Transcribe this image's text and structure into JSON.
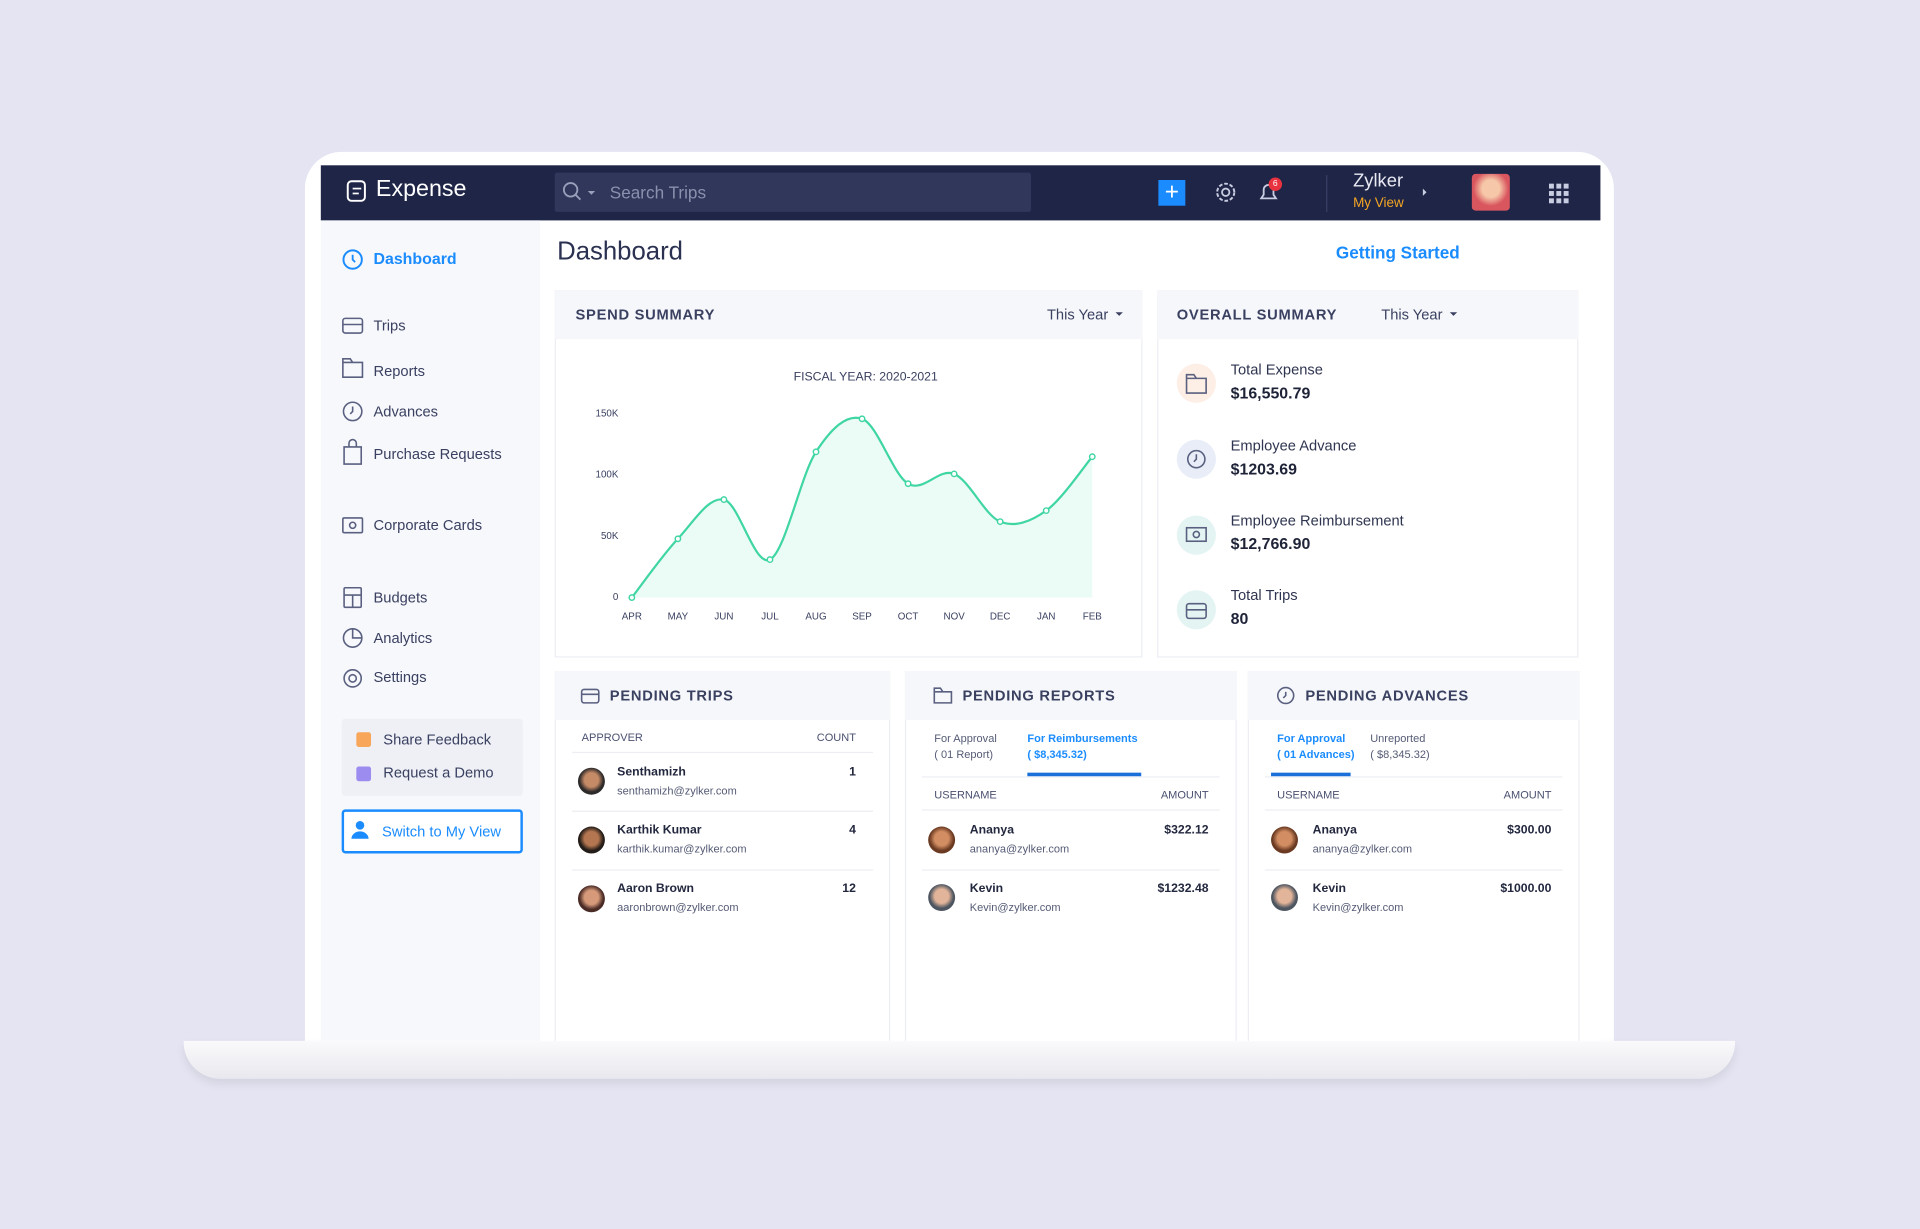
{
  "app": {
    "name": "Expense",
    "search_placeholder": "Search Trips",
    "notification_count": "6",
    "org": "Zylker",
    "view": "My View"
  },
  "sidebar": {
    "items": [
      "Dashboard",
      "Trips",
      "Reports",
      "Advances",
      "Purchase Requests",
      "Corporate Cards",
      "Budgets",
      "Analytics",
      "Settings"
    ],
    "links": [
      "Share Feedback",
      "Request a Demo"
    ],
    "button": "Switch to My View"
  },
  "page": {
    "title": "Dashboard",
    "getting_started": "Getting Started"
  },
  "spend_summary": {
    "title": "SPEND SUMMARY",
    "period": "This Year"
  },
  "chart_data": {
    "type": "line",
    "title": "FISCAL YEAR: 2020-2021",
    "categories": [
      "APR",
      "MAY",
      "JUN",
      "JUL",
      "AUG",
      "SEP",
      "OCT",
      "NOV",
      "DEC",
      "JAN",
      "FEB"
    ],
    "values": [
      0,
      48000,
      80000,
      31000,
      119000,
      146000,
      93000,
      101000,
      62000,
      71000,
      115000
    ],
    "color": "#3fd6a2",
    "ylim": [
      0,
      150000
    ],
    "yticks": [
      0,
      {
        "value": 50000,
        "label": "50K"
      },
      {
        "value": 100000,
        "label": "100K"
      },
      {
        "value": 150000,
        "label": "150K"
      }
    ],
    "grid": false
  },
  "overall_summary": {
    "title": "OVERALL SUMMARY",
    "period": "This Year",
    "items": [
      {
        "label": "Total Expense",
        "value": "$16,550.79"
      },
      {
        "label": "Employee Advance",
        "value": "$1203.69"
      },
      {
        "label": "Employee Reimbursement",
        "value": "$12,766.90"
      },
      {
        "label": "Total Trips",
        "value": "80"
      }
    ]
  },
  "pending_trips": {
    "title": "PENDING TRIPS",
    "columns": [
      "APPROVER",
      "COUNT"
    ],
    "rows": [
      {
        "name": "Senthamizh",
        "email": "senthamizh@zylker.com",
        "count": 1
      },
      {
        "name": "Karthik Kumar",
        "email": "karthik.kumar@zylker.com",
        "count": 4
      },
      {
        "name": "Aaron Brown",
        "email": "aaronbrown@zylker.com",
        "count": 12
      }
    ]
  },
  "pending_reports": {
    "title": "PENDING REPORTS",
    "tabs": [
      {
        "label": "For Approval",
        "sub": "( 01 Report)"
      },
      {
        "label": "For Reimbursements",
        "sub": "( $8,345.32)"
      }
    ],
    "columns": [
      "USERNAME",
      "AMOUNT"
    ],
    "rows": [
      {
        "name": "Ananya",
        "email": "ananya@zylker.com",
        "amount": "$322.12"
      },
      {
        "name": "Kevin",
        "email": "Kevin@zylker.com",
        "amount": "$1232.48"
      }
    ]
  },
  "pending_advances": {
    "title": "PENDING ADVANCES",
    "tabs": [
      {
        "label": "For Approval",
        "sub": "( 01 Advances)"
      },
      {
        "label": "Unreported",
        "sub": "( $8,345.32)"
      }
    ],
    "columns": [
      "USERNAME",
      "AMOUNT"
    ],
    "rows": [
      {
        "name": "Ananya",
        "email": "ananya@zylker.com",
        "amount": "$300.00"
      },
      {
        "name": "Kevin",
        "email": "Kevin@zylker.com",
        "amount": "$1000.00"
      }
    ]
  }
}
